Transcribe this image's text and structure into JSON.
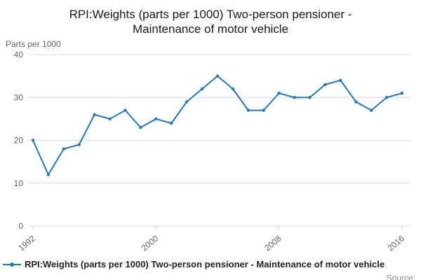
{
  "chart_data": {
    "type": "line",
    "title": "RPI:Weights (parts per 1000) Two-person pensioner - Maintenance of motor vehicle",
    "ylabel": "Parts per 1000",
    "x": [
      1992,
      1993,
      1994,
      1995,
      1996,
      1997,
      1998,
      1999,
      2000,
      2001,
      2002,
      2003,
      2004,
      2005,
      2006,
      2007,
      2008,
      2009,
      2010,
      2011,
      2012,
      2013,
      2014,
      2015,
      2016
    ],
    "values": [
      20,
      12,
      18,
      19,
      26,
      25,
      27,
      23,
      25,
      24,
      29,
      32,
      35,
      32,
      27,
      27,
      31,
      30,
      30,
      33,
      34,
      29,
      27,
      30,
      31
    ],
    "ylim": [
      0,
      40
    ],
    "yticks": [
      0,
      10,
      20,
      30,
      40
    ],
    "xticks": [
      1992,
      2000,
      2008,
      2016
    ],
    "grid": true,
    "legend_position": "bottom-left",
    "line_color": "#2379b8",
    "grid_color": "#d9d9d9",
    "tick_color": "#666666",
    "legend": "RPI:Weights (parts per 1000) Two-person pensioner - Maintenance of motor vehicle"
  },
  "footer": {
    "source_label": "Source:"
  }
}
